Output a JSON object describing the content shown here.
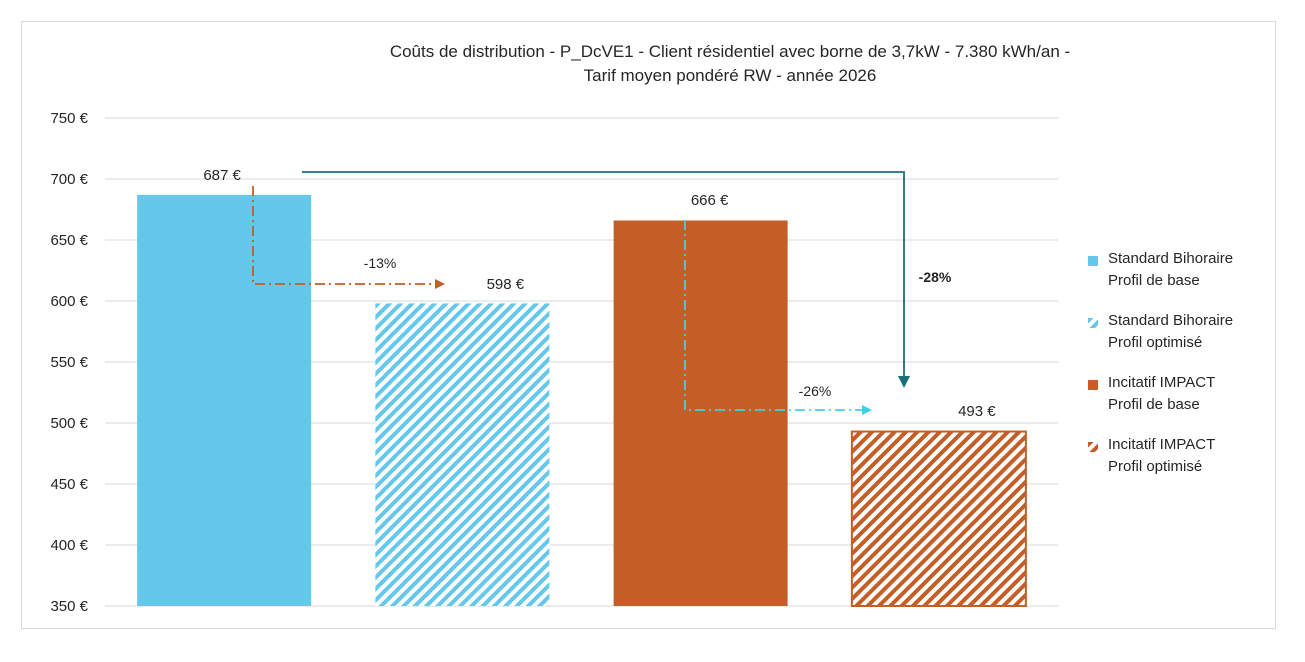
{
  "chart_data": {
    "type": "bar",
    "title": [
      "Coûts de distribution - P_DcVE1 - Client résidentiel avec borne de 3,7kW - 7.380 kWh/an -",
      "Tarif moyen pondéré RW - année 2026"
    ],
    "categories": [
      "Standard Bihoraire Profil de base",
      "Standard Bihoraire Profil optimisé",
      "Incitatif IMPACT Profil de base",
      "Incitatif IMPACT Profil optimisé"
    ],
    "values": [
      687,
      598,
      666,
      493
    ],
    "value_labels": [
      "687 €",
      "598 €",
      "666 €",
      "493 €"
    ],
    "ylim": [
      350,
      750
    ],
    "yticks": [
      350,
      400,
      450,
      500,
      550,
      600,
      650,
      700,
      750
    ],
    "ytick_labels": [
      "350 €",
      "400 €",
      "450 €",
      "500 €",
      "550 €",
      "600 €",
      "650 €",
      "700 €",
      "750 €"
    ],
    "grid": true,
    "legend_position": "right",
    "series_styles": [
      {
        "color": "#65c8ea",
        "pattern": "solid"
      },
      {
        "color": "#65c8ea",
        "pattern": "hatched"
      },
      {
        "color": "#c45e26",
        "pattern": "solid"
      },
      {
        "color": "#c45e26",
        "pattern": "hatched"
      }
    ],
    "legend": [
      {
        "line1": "Standard Bihoraire",
        "line2": "Profil de base",
        "color": "#65c8ea",
        "pattern": "solid"
      },
      {
        "line1": "Standard Bihoraire",
        "line2": "Profil optimisé",
        "color": "#65c8ea",
        "pattern": "hatched"
      },
      {
        "line1": "Incitatif IMPACT",
        "line2": "Profil de base",
        "color": "#c45e26",
        "pattern": "solid"
      },
      {
        "line1": "Incitatif IMPACT",
        "line2": "Profil optimisé",
        "color": "#c45e26",
        "pattern": "hatched"
      }
    ],
    "annotations": [
      {
        "label": "-13%",
        "from": 0,
        "to": 1,
        "color": "#c45e26",
        "style": "dash-dot",
        "bold": false
      },
      {
        "label": "-26%",
        "from": 2,
        "to": 3,
        "color": "#3fd0e6",
        "style": "dash-dot",
        "bold": false
      },
      {
        "label": "-28%",
        "from": 0,
        "to": 3,
        "color": "#17707e",
        "style": "solid",
        "bold": true
      }
    ]
  }
}
